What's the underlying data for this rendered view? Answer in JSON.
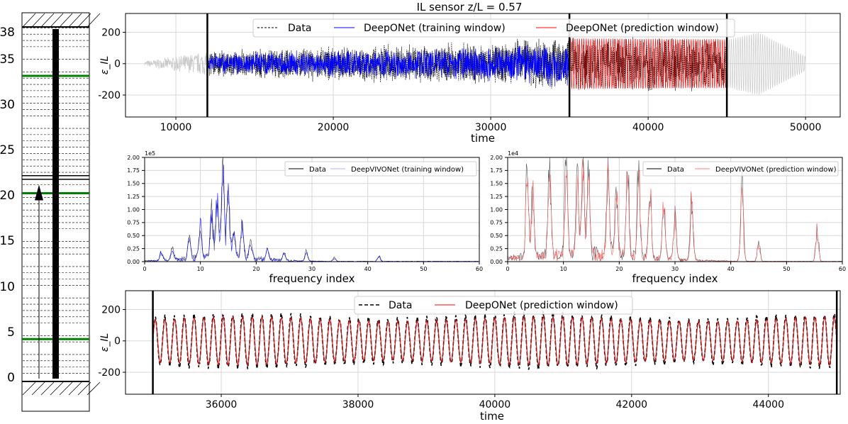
{
  "colors": {
    "data": "#000000",
    "training": "#0000ff",
    "prediction": "#ff0000",
    "training_faint": "#b0b0f0",
    "riser_marker": "#008000",
    "grid": "#d8d8d8",
    "surrounding_signal": "#c8c8c8"
  },
  "riser": {
    "yticks": [
      "0",
      "5",
      "10",
      "15",
      "20",
      "25",
      "30",
      "35",
      "38"
    ],
    "green_levels": [
      4.2,
      20.0,
      32.7
    ],
    "black_levels": [
      21.5,
      21.9
    ],
    "sensor_arrow_top": 20.0
  },
  "chart_data": [
    {
      "id": "time-top",
      "type": "line",
      "title": "IL sensor z/L = 0.57",
      "xlabel": "time",
      "ylabel": "ε_IL",
      "xlim": [
        6800,
        52200
      ],
      "ylim": [
        -340,
        320
      ],
      "xticks": [
        10000,
        20000,
        30000,
        40000,
        50000
      ],
      "yticks": [
        -200,
        0,
        200
      ],
      "vlines": [
        12000,
        35000,
        45000
      ],
      "legend": [
        "Data",
        "DeepONet (training window)",
        "DeepONet (prediction window)"
      ],
      "legend_position": "top-center",
      "grid": true,
      "series": [
        {
          "name": "Data",
          "x_range": [
            8000,
            50000
          ],
          "envelope": [
            [
              8000,
              15
            ],
            [
              12000,
              75
            ],
            [
              20000,
              95
            ],
            [
              30000,
              120
            ],
            [
              34000,
              160
            ],
            [
              45000,
              150
            ],
            [
              47000,
              200
            ],
            [
              50000,
              45
            ]
          ]
        },
        {
          "name": "DeepONet (training window)",
          "x_range": [
            12000,
            35000
          ],
          "envelope": [
            [
              12000,
              70
            ],
            [
              20000,
              85
            ],
            [
              30000,
              115
            ],
            [
              35000,
              160
            ]
          ]
        },
        {
          "name": "DeepONet (prediction window)",
          "x_range": [
            35000,
            45000
          ],
          "envelope": [
            [
              35000,
              160
            ],
            [
              45000,
              155
            ]
          ]
        }
      ]
    },
    {
      "id": "fft-train",
      "type": "line",
      "xlabel": "frequency index",
      "xlim": [
        0,
        60
      ],
      "ylim": [
        0,
        200000
      ],
      "exponent_label": "1e5",
      "xticks": [
        0,
        10,
        20,
        30,
        40,
        50,
        60
      ],
      "yticks": [
        "0.00",
        "0.25",
        "0.50",
        "0.75",
        "1.00",
        "1.25",
        "1.50",
        "1.75",
        "2.00"
      ],
      "legend": [
        "Data",
        "DeepVIVONet (training window)"
      ],
      "legend_position": "top-right",
      "grid": true,
      "peaks": [
        [
          3,
          18000
        ],
        [
          5,
          25000
        ],
        [
          8,
          45000
        ],
        [
          10,
          70000
        ],
        [
          12,
          95000
        ],
        [
          13,
          140000
        ],
        [
          14,
          200000
        ],
        [
          15,
          160000
        ],
        [
          16,
          60000
        ],
        [
          17.5,
          75000
        ],
        [
          19,
          30000
        ],
        [
          22,
          20000
        ],
        [
          25,
          15000
        ],
        [
          29,
          20000
        ],
        [
          34,
          8000
        ],
        [
          42,
          12000
        ]
      ]
    },
    {
      "id": "fft-pred",
      "type": "line",
      "xlabel": "frequency index",
      "xlim": [
        0,
        60
      ],
      "ylim": [
        0,
        20000
      ],
      "exponent_label": "1e4",
      "xticks": [
        0,
        10,
        20,
        30,
        40,
        50,
        60
      ],
      "yticks": [
        "0.00",
        "0.25",
        "0.50",
        "0.75",
        "1.00",
        "1.25",
        "1.50",
        "1.75",
        "2.00"
      ],
      "legend": [
        "Data",
        "DeepVIVONet (prediction window)"
      ],
      "legend_position": "top-right",
      "grid": true,
      "peaks": [
        [
          3.5,
          20000
        ],
        [
          4.5,
          14000
        ],
        [
          7.5,
          20000
        ],
        [
          10.5,
          20000
        ],
        [
          12.5,
          16000
        ],
        [
          13.5,
          20000
        ],
        [
          14.5,
          20000
        ],
        [
          18,
          20000
        ],
        [
          19.5,
          14000
        ],
        [
          21.5,
          20000
        ],
        [
          23.5,
          20000
        ],
        [
          25.5,
          16000
        ],
        [
          28,
          13000
        ],
        [
          30,
          10000
        ],
        [
          33,
          14000
        ],
        [
          42,
          17000
        ],
        [
          45,
          4000
        ],
        [
          55.5,
          7000
        ]
      ]
    },
    {
      "id": "time-bottom",
      "type": "line",
      "xlabel": "time",
      "ylabel": "ε_IL",
      "xlim": [
        34600,
        45050
      ],
      "ylim": [
        -340,
        320
      ],
      "xticks": [
        36000,
        38000,
        40000,
        42000,
        44000
      ],
      "yticks": [
        -200,
        0,
        200
      ],
      "vlines": [
        35000,
        45000
      ],
      "legend": [
        "Data",
        "DeepONet (prediction window)"
      ],
      "legend_position": "top-center",
      "grid": true,
      "series": [
        {
          "name": "Data",
          "x_range": [
            35000,
            45000
          ],
          "amplitude": 165
        },
        {
          "name": "DeepONet (prediction window)",
          "x_range": [
            35000,
            45000
          ],
          "amplitude": 150
        }
      ]
    }
  ]
}
